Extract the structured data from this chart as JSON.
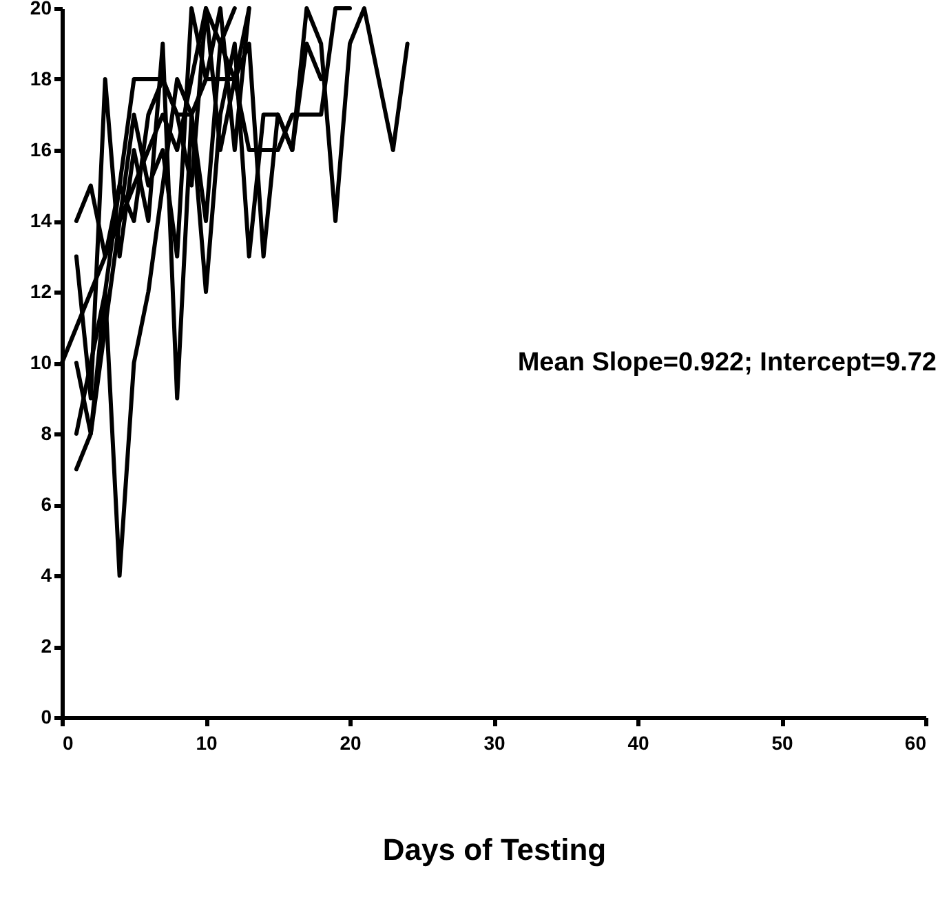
{
  "chart_data": {
    "type": "line",
    "xlabel": "Days of Testing",
    "annotations": [
      "Mean  Slope=0.922;  Intercept=9.72"
    ],
    "xlim": [
      0,
      60
    ],
    "xticks": [
      0,
      10,
      20,
      30,
      40,
      50,
      60
    ],
    "ylim": [
      0,
      20
    ],
    "yticks": [
      0,
      2,
      4,
      6,
      8,
      10,
      12,
      14,
      16,
      18,
      20
    ],
    "grid": false,
    "marker": "none",
    "line_style": "solid",
    "series": [
      {
        "color": "#000000",
        "x": [
          0,
          1,
          2,
          3,
          4,
          5,
          6,
          7,
          8,
          9,
          10,
          11,
          12
        ],
        "values": [
          10,
          11,
          12,
          13,
          14,
          15,
          16,
          17,
          16,
          18,
          20,
          19,
          20
        ]
      },
      {
        "color": "#000000",
        "x": [
          1,
          2,
          3,
          4,
          5,
          6,
          7,
          8,
          9,
          10,
          11,
          12,
          13,
          14,
          15,
          16,
          17,
          18,
          19,
          20
        ],
        "values": [
          14,
          15,
          13,
          15,
          18,
          18,
          18,
          17,
          17,
          18,
          18,
          18,
          16,
          16,
          16,
          17,
          17,
          17,
          20,
          20
        ]
      },
      {
        "color": "#000000",
        "x": [
          1,
          2,
          3,
          4,
          5,
          6,
          7,
          8,
          9,
          10,
          11,
          12,
          13
        ],
        "values": [
          10,
          8,
          12,
          4,
          10,
          12,
          15,
          18,
          17,
          14,
          19,
          18,
          20
        ]
      },
      {
        "color": "#000000",
        "x": [
          1,
          2,
          3,
          4,
          5,
          6,
          7,
          8,
          9,
          10,
          11,
          12,
          13,
          14,
          15,
          16,
          17,
          18,
          19,
          20,
          21,
          22,
          23,
          24
        ],
        "values": [
          13,
          9,
          18,
          13,
          16,
          14,
          19,
          9,
          17,
          12,
          17,
          19,
          13,
          17,
          17,
          16,
          20,
          19,
          14,
          19,
          20,
          18,
          16,
          19
        ]
      },
      {
        "color": "#000000",
        "x": [
          1,
          2,
          3,
          4,
          5,
          6,
          7,
          8,
          9,
          10,
          11,
          12,
          13
        ],
        "values": [
          7,
          8,
          11,
          14,
          17,
          15,
          16,
          13,
          20,
          18,
          20,
          16,
          20
        ]
      },
      {
        "color": "#000000",
        "x": [
          1,
          2,
          3,
          4,
          5,
          6,
          7,
          8,
          9,
          10,
          11,
          12,
          13,
          14,
          15,
          16,
          17,
          18
        ],
        "values": [
          8,
          10,
          12,
          15,
          14,
          17,
          18,
          17,
          15,
          20,
          16,
          18,
          19,
          13,
          17,
          16,
          19,
          18
        ]
      }
    ]
  }
}
